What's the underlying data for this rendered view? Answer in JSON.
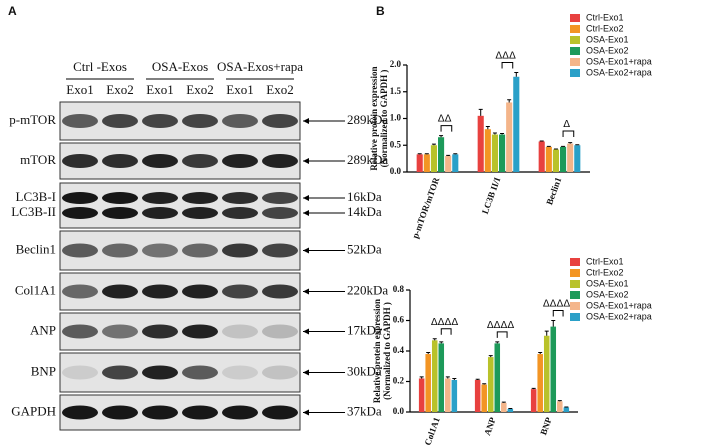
{
  "panel_labels": [
    "A",
    "B"
  ],
  "blot": {
    "groups": [
      "Ctrl -Exos",
      "OSA-Exos",
      "OSA-Exos+rapa"
    ],
    "lanes": [
      "Exo1",
      "Exo2",
      "Exo1",
      "Exo2",
      "Exo1",
      "Exo2"
    ],
    "rows": [
      {
        "labels": [
          "p-mTOR"
        ],
        "sizes": [
          "289kDa"
        ]
      },
      {
        "labels": [
          "mTOR"
        ],
        "sizes": [
          "289kDa"
        ]
      },
      {
        "labels": [
          "LC3B-I",
          "LC3B-II"
        ],
        "sizes": [
          "16kDa",
          "14kDa"
        ]
      },
      {
        "labels": [
          "Beclin1"
        ],
        "sizes": [
          "52kDa"
        ]
      },
      {
        "labels": [
          "Col1A1"
        ],
        "sizes": [
          "220kDa"
        ]
      },
      {
        "labels": [
          "ANP"
        ],
        "sizes": [
          "17kDa"
        ]
      },
      {
        "labels": [
          "BNP"
        ],
        "sizes": [
          "30kDa"
        ]
      },
      {
        "labels": [
          "GAPDH"
        ],
        "sizes": [
          "37kDa"
        ]
      }
    ]
  },
  "chart_data": [
    {
      "type": "bar",
      "ylabel": [
        "Relative protein expression",
        "(Normalized to GAPDH )"
      ],
      "categories": [
        "p-mTOR/mTOR",
        "LC3B II/I",
        "Beclin1"
      ],
      "annotations": [
        "ΔΔ",
        "ΔΔΔ",
        "Δ"
      ],
      "ylim": [
        0,
        2.0
      ],
      "yticks": [
        {
          "value": 0,
          "label": "0.0"
        },
        0.5,
        {
          "value": 1,
          "label": "1.0"
        },
        1.5,
        {
          "value": 2,
          "label": "2.0"
        }
      ],
      "series": [
        {
          "name": "Ctrl-Exo1",
          "color": "#e8413f",
          "values": [
            0.33,
            1.05,
            0.57
          ],
          "errors": [
            0.01,
            0.12,
            0.01
          ]
        },
        {
          "name": "Ctrl-Exo2",
          "color": "#f39524",
          "values": [
            0.33,
            0.8,
            0.47
          ],
          "errors": [
            0.01,
            0.05,
            0.01
          ]
        },
        {
          "name": "OSA-Exo1",
          "color": "#b9c22a",
          "values": [
            0.5,
            0.7,
            0.42
          ],
          "errors": [
            0.02,
            0.03,
            0.01
          ]
        },
        {
          "name": "OSA-Exo2",
          "color": "#1d9a5a",
          "values": [
            0.65,
            0.7,
            0.47
          ],
          "errors": [
            0.03,
            0.02,
            0.01
          ]
        },
        {
          "name": "OSA-Exo1+rapa",
          "color": "#f4b58a",
          "values": [
            0.3,
            1.3,
            0.53
          ],
          "errors": [
            0.01,
            0.05,
            0.02
          ]
        },
        {
          "name": "OSA-Exo2+rapa",
          "color": "#2aa0c8",
          "values": [
            0.33,
            1.78,
            0.5
          ],
          "errors": [
            0.01,
            0.08,
            0.01
          ]
        }
      ]
    },
    {
      "type": "bar",
      "ylabel": [
        "Relative protein expression",
        "(Normalized to GAPDH )"
      ],
      "categories": [
        "Col1A1",
        "ANP",
        "BNP"
      ],
      "annotations": [
        "ΔΔΔΔ",
        "ΔΔΔΔ",
        "ΔΔΔΔ"
      ],
      "ylim": [
        0,
        0.8
      ],
      "yticks": [
        {
          "value": 0,
          "label": "0.0"
        },
        0.2,
        0.4,
        0.6,
        0.8
      ],
      "series": [
        {
          "name": "Ctrl-Exo1",
          "color": "#e8413f",
          "values": [
            0.22,
            0.21,
            0.15
          ],
          "errors": [
            0.01,
            0.005,
            0.005
          ]
        },
        {
          "name": "Ctrl-Exo2",
          "color": "#f39524",
          "values": [
            0.38,
            0.18,
            0.38
          ],
          "errors": [
            0.01,
            0.005,
            0.01
          ]
        },
        {
          "name": "OSA-Exo1",
          "color": "#b9c22a",
          "values": [
            0.47,
            0.36,
            0.5
          ],
          "errors": [
            0.01,
            0.01,
            0.03
          ]
        },
        {
          "name": "OSA-Exo2",
          "color": "#1d9a5a",
          "values": [
            0.45,
            0.45,
            0.56
          ],
          "errors": [
            0.01,
            0.01,
            0.04
          ]
        },
        {
          "name": "OSA-Exo1+rapa",
          "color": "#f4b58a",
          "values": [
            0.22,
            0.06,
            0.07
          ],
          "errors": [
            0.01,
            0.005,
            0.005
          ]
        },
        {
          "name": "OSA-Exo2+rapa",
          "color": "#2aa0c8",
          "values": [
            0.21,
            0.02,
            0.03
          ],
          "errors": [
            0.01,
            0.003,
            0.003
          ]
        }
      ]
    }
  ]
}
